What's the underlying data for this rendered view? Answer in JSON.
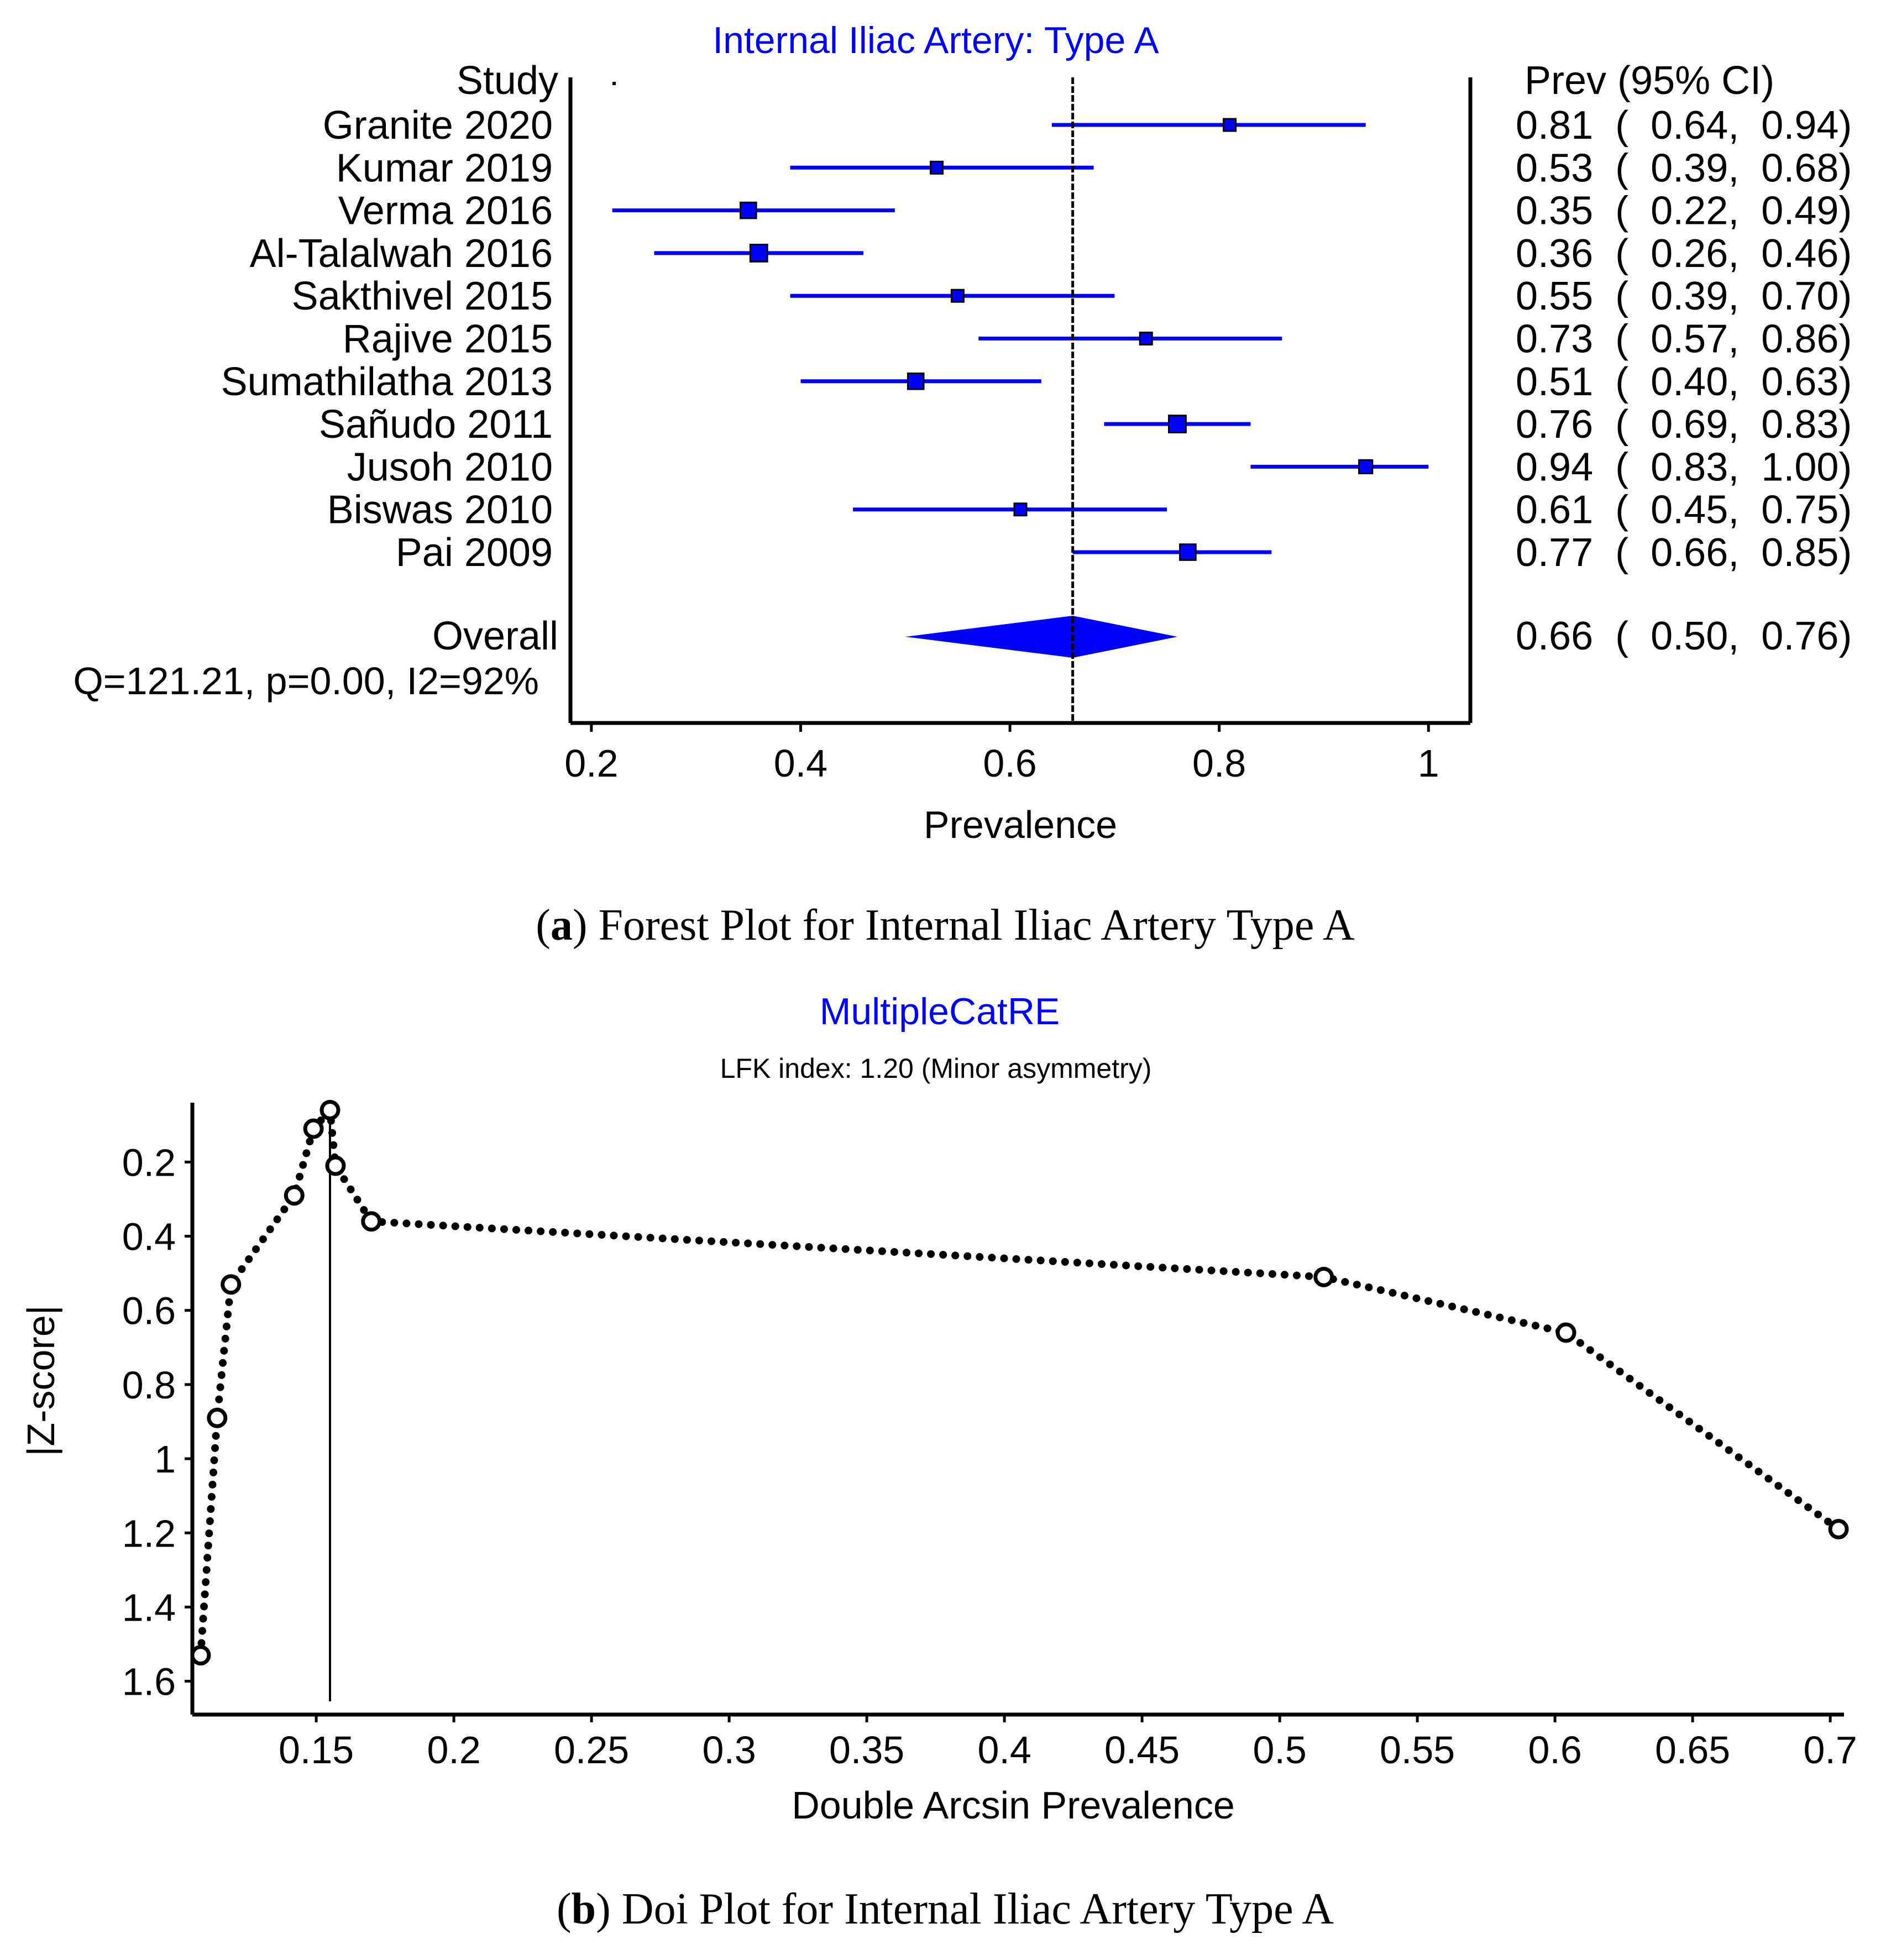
{
  "colors": {
    "accent": "#0000ff",
    "ink": "#000000"
  },
  "chart_data": [
    {
      "type": "forest",
      "title": "Internal Iliac Artery: Type A",
      "xlabel": "Prevalence",
      "xlim": [
        0.18,
        1.04
      ],
      "xticks": [
        0.2,
        0.4,
        0.6,
        0.8,
        1
      ],
      "tick_labels": [
        "0.2",
        "0.4",
        "0.6",
        "0.8",
        "1"
      ],
      "reference_line": 0.66,
      "study_header": "Study",
      "ci_header": "Prev (95% CI)",
      "studies": [
        {
          "name": "Granite 2020",
          "prev": 0.81,
          "lo": 0.64,
          "hi": 0.94,
          "text": "0.81  (  0.64,  0.94)",
          "weight": 1.0
        },
        {
          "name": "Kumar 2019",
          "prev": 0.53,
          "lo": 0.39,
          "hi": 0.68,
          "text": "0.53  (  0.39,  0.68)",
          "weight": 1.0
        },
        {
          "name": "Verma 2016",
          "prev": 0.35,
          "lo": 0.22,
          "hi": 0.49,
          "text": "0.35  (  0.22,  0.49)",
          "weight": 1.3
        },
        {
          "name": "Al-Talalwah 2016",
          "prev": 0.36,
          "lo": 0.26,
          "hi": 0.46,
          "text": "0.36  (  0.26,  0.46)",
          "weight": 1.4
        },
        {
          "name": "Sakthivel 2015",
          "prev": 0.55,
          "lo": 0.39,
          "hi": 0.7,
          "text": "0.55  (  0.39,  0.70)",
          "weight": 1.0
        },
        {
          "name": "Rajive 2015",
          "prev": 0.73,
          "lo": 0.57,
          "hi": 0.86,
          "text": "0.73  (  0.57,  0.86)",
          "weight": 1.0
        },
        {
          "name": "Sumathilatha 2013",
          "prev": 0.51,
          "lo": 0.4,
          "hi": 0.63,
          "text": "0.51  (  0.40,  0.63)",
          "weight": 1.3
        },
        {
          "name": "Sañudo 2011",
          "prev": 0.76,
          "lo": 0.69,
          "hi": 0.83,
          "text": "0.76  (  0.69,  0.83)",
          "weight": 1.4
        },
        {
          "name": "Jusoh 2010",
          "prev": 0.94,
          "lo": 0.83,
          "hi": 1.0,
          "text": "0.94  (  0.83,  1.00)",
          "weight": 1.1
        },
        {
          "name": "Biswas 2010",
          "prev": 0.61,
          "lo": 0.45,
          "hi": 0.75,
          "text": "0.61  (  0.45,  0.75)",
          "weight": 1.0
        },
        {
          "name": "Pai 2009",
          "prev": 0.77,
          "lo": 0.66,
          "hi": 0.85,
          "text": "0.77  (  0.66,  0.85)",
          "weight": 1.3
        }
      ],
      "overall": {
        "label": "Overall",
        "prev": 0.66,
        "lo": 0.5,
        "hi": 0.76,
        "text": "0.66  (  0.50,  0.76)"
      },
      "heterogeneity": "Q=121.21, p=0.00, I2=92%",
      "caption_letter": "a",
      "caption_text": "Forest Plot for Internal Iliac Artery Type A"
    },
    {
      "type": "line",
      "subtype": "doi-plot",
      "title": "MultipleCatRE",
      "subtitle": "LFK index: 1.20 (Minor asymmetry)",
      "xlabel": "Double Arcsin Prevalence",
      "ylabel": "|Z-score|",
      "xlim": [
        0.105,
        0.705
      ],
      "ylim": [
        0.04,
        1.69
      ],
      "y_inverted": true,
      "xticks": [
        0.15,
        0.2,
        0.25,
        0.3,
        0.35,
        0.4,
        0.45,
        0.5,
        0.55,
        0.6,
        0.65,
        0.7
      ],
      "xtick_labels": [
        "0.15",
        "0.2",
        "0.25",
        "0.3",
        "0.35",
        "0.4",
        "0.45",
        "0.5",
        "0.55",
        "0.6",
        "0.65",
        "0.7"
      ],
      "yticks": [
        0.2,
        0.4,
        0.6,
        0.8,
        1,
        1.2,
        1.4,
        1.6
      ],
      "ytick_labels": [
        "0.2",
        "0.4",
        "0.6",
        "0.8",
        "1",
        "1.2",
        "1.4",
        "1.6"
      ],
      "vertical_line_x": 0.155,
      "points": [
        {
          "x": 0.108,
          "y": 1.53
        },
        {
          "x": 0.114,
          "y": 0.89
        },
        {
          "x": 0.119,
          "y": 0.53
        },
        {
          "x": 0.142,
          "y": 0.29
        },
        {
          "x": 0.149,
          "y": 0.11
        },
        {
          "x": 0.155,
          "y": 0.06
        },
        {
          "x": 0.157,
          "y": 0.21
        },
        {
          "x": 0.17,
          "y": 0.36
        },
        {
          "x": 0.516,
          "y": 0.51
        },
        {
          "x": 0.604,
          "y": 0.66
        },
        {
          "x": 0.703,
          "y": 1.19
        }
      ],
      "caption_letter": "b",
      "caption_text": "Doi Plot for Internal Iliac Artery Type A"
    }
  ]
}
